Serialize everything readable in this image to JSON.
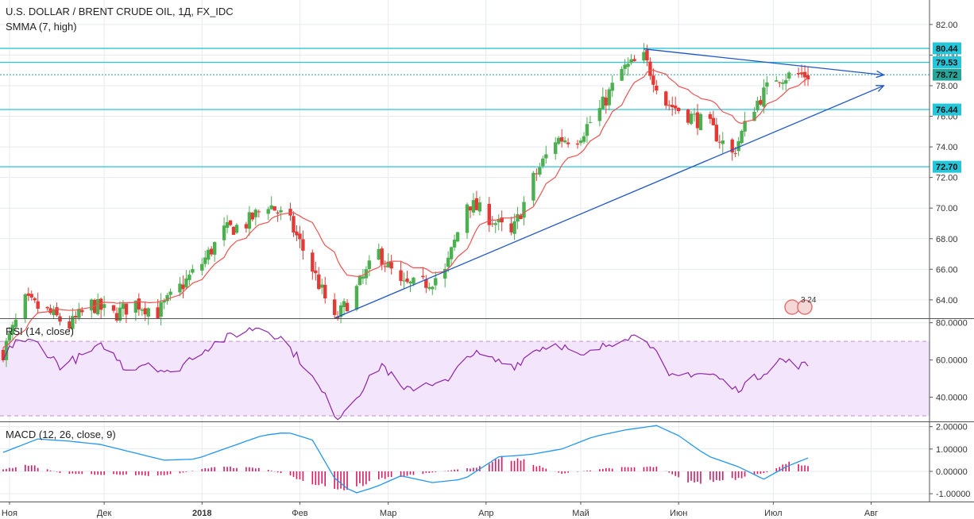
{
  "chart_data": [
    {
      "type": "candlestick",
      "title": "U.S. DOLLAR / BRENT CRUDE OIL, 1Д, FX_IDC",
      "indicator": "SMMA (7, high)",
      "ylim": [
        62.8,
        83.6
      ],
      "yticks": [
        64.0,
        66.0,
        68.0,
        70.0,
        72.0,
        74.0,
        76.0,
        78.0,
        80.0,
        82.0
      ],
      "ytick_labels": [
        "64.00",
        "66.00",
        "68.00",
        "70.00",
        "72.00",
        "74.00",
        "76.00",
        "78.00",
        "80.00",
        "82.00"
      ],
      "horizontal_levels": [
        {
          "value": 80.44,
          "label": "80.44",
          "color": "#26c6da"
        },
        {
          "value": 79.53,
          "label": "79.53",
          "color": "#26c6da"
        },
        {
          "value": 76.44,
          "label": "76.44",
          "color": "#26c6da"
        },
        {
          "value": 72.7,
          "label": "72.70",
          "color": "#26c6da"
        }
      ],
      "last_price": {
        "value": 78.72,
        "label": "78.72",
        "color": "#26a69a"
      },
      "trendlines": [
        {
          "from": [
            "2018-05-21",
            80.4
          ],
          "to": [
            "2018-08-05",
            78.7
          ],
          "arrow": true,
          "color": "#1e55c6"
        },
        {
          "from": [
            "2018-02-12",
            62.8
          ],
          "to": [
            "2018-08-05",
            78.0
          ],
          "arrow": true,
          "color": "#1e55c6"
        }
      ],
      "ohlc_keyframes": [
        [
          "2017-10-30",
          60.6
        ],
        [
          "2017-11-06",
          63.9
        ],
        [
          "2017-11-13",
          63.2
        ],
        [
          "2017-11-20",
          62.3
        ],
        [
          "2017-11-27",
          63.7
        ],
        [
          "2017-12-04",
          63.0
        ],
        [
          "2017-12-11",
          63.8
        ],
        [
          "2017-12-18",
          63.2
        ],
        [
          "2017-12-25",
          64.8
        ],
        [
          "2018-01-01",
          66.4
        ],
        [
          "2018-01-08",
          68.5
        ],
        [
          "2018-01-15",
          69.0
        ],
        [
          "2018-01-22",
          70.3
        ],
        [
          "2018-01-29",
          69.0
        ],
        [
          "2018-02-05",
          66.0
        ],
        [
          "2018-02-12",
          62.6
        ],
        [
          "2018-02-19",
          64.7
        ],
        [
          "2018-02-26",
          67.1
        ],
        [
          "2018-03-05",
          64.9
        ],
        [
          "2018-03-12",
          65.0
        ],
        [
          "2018-03-19",
          65.8
        ],
        [
          "2018-03-26",
          70.4
        ],
        [
          "2018-04-02",
          69.4
        ],
        [
          "2018-04-09",
          68.2
        ],
        [
          "2018-04-16",
          71.9
        ],
        [
          "2018-04-23",
          74.5
        ],
        [
          "2018-04-30",
          74.6
        ],
        [
          "2018-05-07",
          76.4
        ],
        [
          "2018-05-14",
          79.0
        ],
        [
          "2018-05-21",
          79.8
        ],
        [
          "2018-05-28",
          76.9
        ],
        [
          "2018-06-04",
          76.1
        ],
        [
          "2018-06-11",
          75.3
        ],
        [
          "2018-06-18",
          73.5
        ],
        [
          "2018-06-25",
          76.7
        ],
        [
          "2018-07-02",
          78.6
        ],
        [
          "2018-07-09",
          78.7
        ]
      ]
    },
    {
      "type": "line",
      "title": "RSI (14, close)",
      "ylim": [
        27,
        82
      ],
      "yticks": [
        40,
        60,
        80
      ],
      "ytick_labels": [
        "40.0000",
        "60.0000",
        "80.0000"
      ],
      "band": [
        30,
        70
      ],
      "keyframes": [
        [
          "2017-10-30",
          60
        ],
        [
          "2017-11-03",
          71
        ],
        [
          "2017-11-10",
          69
        ],
        [
          "2017-11-17",
          57
        ],
        [
          "2017-11-24",
          62
        ],
        [
          "2017-12-01",
          68
        ],
        [
          "2017-12-08",
          55
        ],
        [
          "2017-12-15",
          59
        ],
        [
          "2017-12-22",
          52
        ],
        [
          "2017-12-29",
          62
        ],
        [
          "2018-01-05",
          69
        ],
        [
          "2018-01-12",
          74
        ],
        [
          "2018-01-19",
          78
        ],
        [
          "2018-01-26",
          72
        ],
        [
          "2018-02-02",
          58
        ],
        [
          "2018-02-09",
          40
        ],
        [
          "2018-02-13",
          29
        ],
        [
          "2018-02-20",
          43
        ],
        [
          "2018-02-27",
          58
        ],
        [
          "2018-03-06",
          43
        ],
        [
          "2018-03-13",
          48
        ],
        [
          "2018-03-20",
          48
        ],
        [
          "2018-03-27",
          64
        ],
        [
          "2018-04-03",
          60
        ],
        [
          "2018-04-10",
          57
        ],
        [
          "2018-04-17",
          66
        ],
        [
          "2018-04-24",
          69
        ],
        [
          "2018-05-01",
          61
        ],
        [
          "2018-05-08",
          67
        ],
        [
          "2018-05-15",
          73
        ],
        [
          "2018-05-22",
          72
        ],
        [
          "2018-05-29",
          50
        ],
        [
          "2018-06-05",
          53
        ],
        [
          "2018-06-12",
          52
        ],
        [
          "2018-06-19",
          44
        ],
        [
          "2018-06-26",
          51
        ],
        [
          "2018-07-03",
          60
        ],
        [
          "2018-07-10",
          57
        ]
      ]
    },
    {
      "type": "bar+line",
      "title": "MACD (12, 26, close, 9)",
      "ylim": [
        -1.35,
        2.2
      ],
      "yticks": [
        -1.0,
        0.0,
        1.0,
        2.0
      ],
      "ytick_labels": [
        "-1.00000",
        "0.00000",
        "1.00000",
        "2.00000"
      ],
      "macd_keyframes": [
        [
          "2017-10-30",
          0.85
        ],
        [
          "2017-11-10",
          1.45
        ],
        [
          "2017-11-20",
          1.35
        ],
        [
          "2017-11-30",
          1.2
        ],
        [
          "2017-12-10",
          0.85
        ],
        [
          "2017-12-20",
          0.5
        ],
        [
          "2017-12-30",
          0.55
        ],
        [
          "2018-01-10",
          1.1
        ],
        [
          "2018-01-20",
          1.6
        ],
        [
          "2018-01-28",
          1.75
        ],
        [
          "2018-02-05",
          1.4
        ],
        [
          "2018-02-12",
          -0.3
        ],
        [
          "2018-02-18",
          -1.0
        ],
        [
          "2018-02-25",
          -0.7
        ],
        [
          "2018-03-05",
          -0.2
        ],
        [
          "2018-03-15",
          -0.5
        ],
        [
          "2018-03-25",
          -0.35
        ],
        [
          "2018-04-05",
          0.65
        ],
        [
          "2018-04-15",
          0.75
        ],
        [
          "2018-04-25",
          1.0
        ],
        [
          "2018-05-05",
          1.55
        ],
        [
          "2018-05-15",
          1.85
        ],
        [
          "2018-05-25",
          2.05
        ],
        [
          "2018-06-01",
          1.6
        ],
        [
          "2018-06-10",
          0.7
        ],
        [
          "2018-06-20",
          0.2
        ],
        [
          "2018-06-28",
          -0.35
        ],
        [
          "2018-07-05",
          0.2
        ],
        [
          "2018-07-12",
          0.6
        ]
      ],
      "hist_keyframes": [
        [
          "2017-10-30",
          0.1
        ],
        [
          "2017-11-07",
          0.3
        ],
        [
          "2017-11-18",
          -0.1
        ],
        [
          "2017-12-05",
          -0.15
        ],
        [
          "2017-12-20",
          -0.2
        ],
        [
          "2018-01-05",
          0.2
        ],
        [
          "2018-01-20",
          0.15
        ],
        [
          "2018-02-05",
          -0.5
        ],
        [
          "2018-02-15",
          -0.8
        ],
        [
          "2018-02-28",
          -0.3
        ],
        [
          "2018-03-15",
          -0.05
        ],
        [
          "2018-03-30",
          0.2
        ],
        [
          "2018-04-05",
          0.6
        ],
        [
          "2018-04-12",
          0.5
        ],
        [
          "2018-04-25",
          -0.1
        ],
        [
          "2018-05-10",
          0.15
        ],
        [
          "2018-05-25",
          0.2
        ],
        [
          "2018-06-05",
          -0.5
        ],
        [
          "2018-06-20",
          -0.35
        ],
        [
          "2018-06-30",
          0.0
        ],
        [
          "2018-07-05",
          0.4
        ],
        [
          "2018-07-12",
          0.2
        ]
      ]
    }
  ],
  "price_title": "U.S. DOLLAR / BRENT CRUDE OIL, 1Д, FX_IDC",
  "price_indicator": "SMMA (7, high)",
  "rsi_title": "RSI (14, close)",
  "macd_title": "MACD (12, 26, close, 9)",
  "x_ticks": [
    {
      "date": "2017-11-01",
      "label": "Ноя",
      "bold": false
    },
    {
      "date": "2017-12-01",
      "label": "Дек",
      "bold": false
    },
    {
      "date": "2018-01-01",
      "label": "2018",
      "bold": true
    },
    {
      "date": "2018-02-01",
      "label": "Фев",
      "bold": false
    },
    {
      "date": "2018-03-01",
      "label": "Мар",
      "bold": false
    },
    {
      "date": "2018-04-01",
      "label": "Апр",
      "bold": false
    },
    {
      "date": "2018-05-01",
      "label": "Май",
      "bold": false
    },
    {
      "date": "2018-06-01",
      "label": "Июн",
      "bold": false
    },
    {
      "date": "2018-07-01",
      "label": "Июл",
      "bold": false
    },
    {
      "date": "2018-08-01",
      "label": "Авг",
      "bold": false
    }
  ],
  "x_range": [
    "2017-10-30",
    "2018-08-19"
  ],
  "colors": {
    "up": "#4caf50",
    "down": "#e53935",
    "smma": "#ef5350",
    "trend": "#1e55c6",
    "level": "#26c6da",
    "rsi": "#8e24aa",
    "rsi_band": "#f3e5fb",
    "macd": "#2196f3",
    "hist": "#d81b60",
    "grid": "#e6eaef"
  },
  "events_badge": "3 24"
}
